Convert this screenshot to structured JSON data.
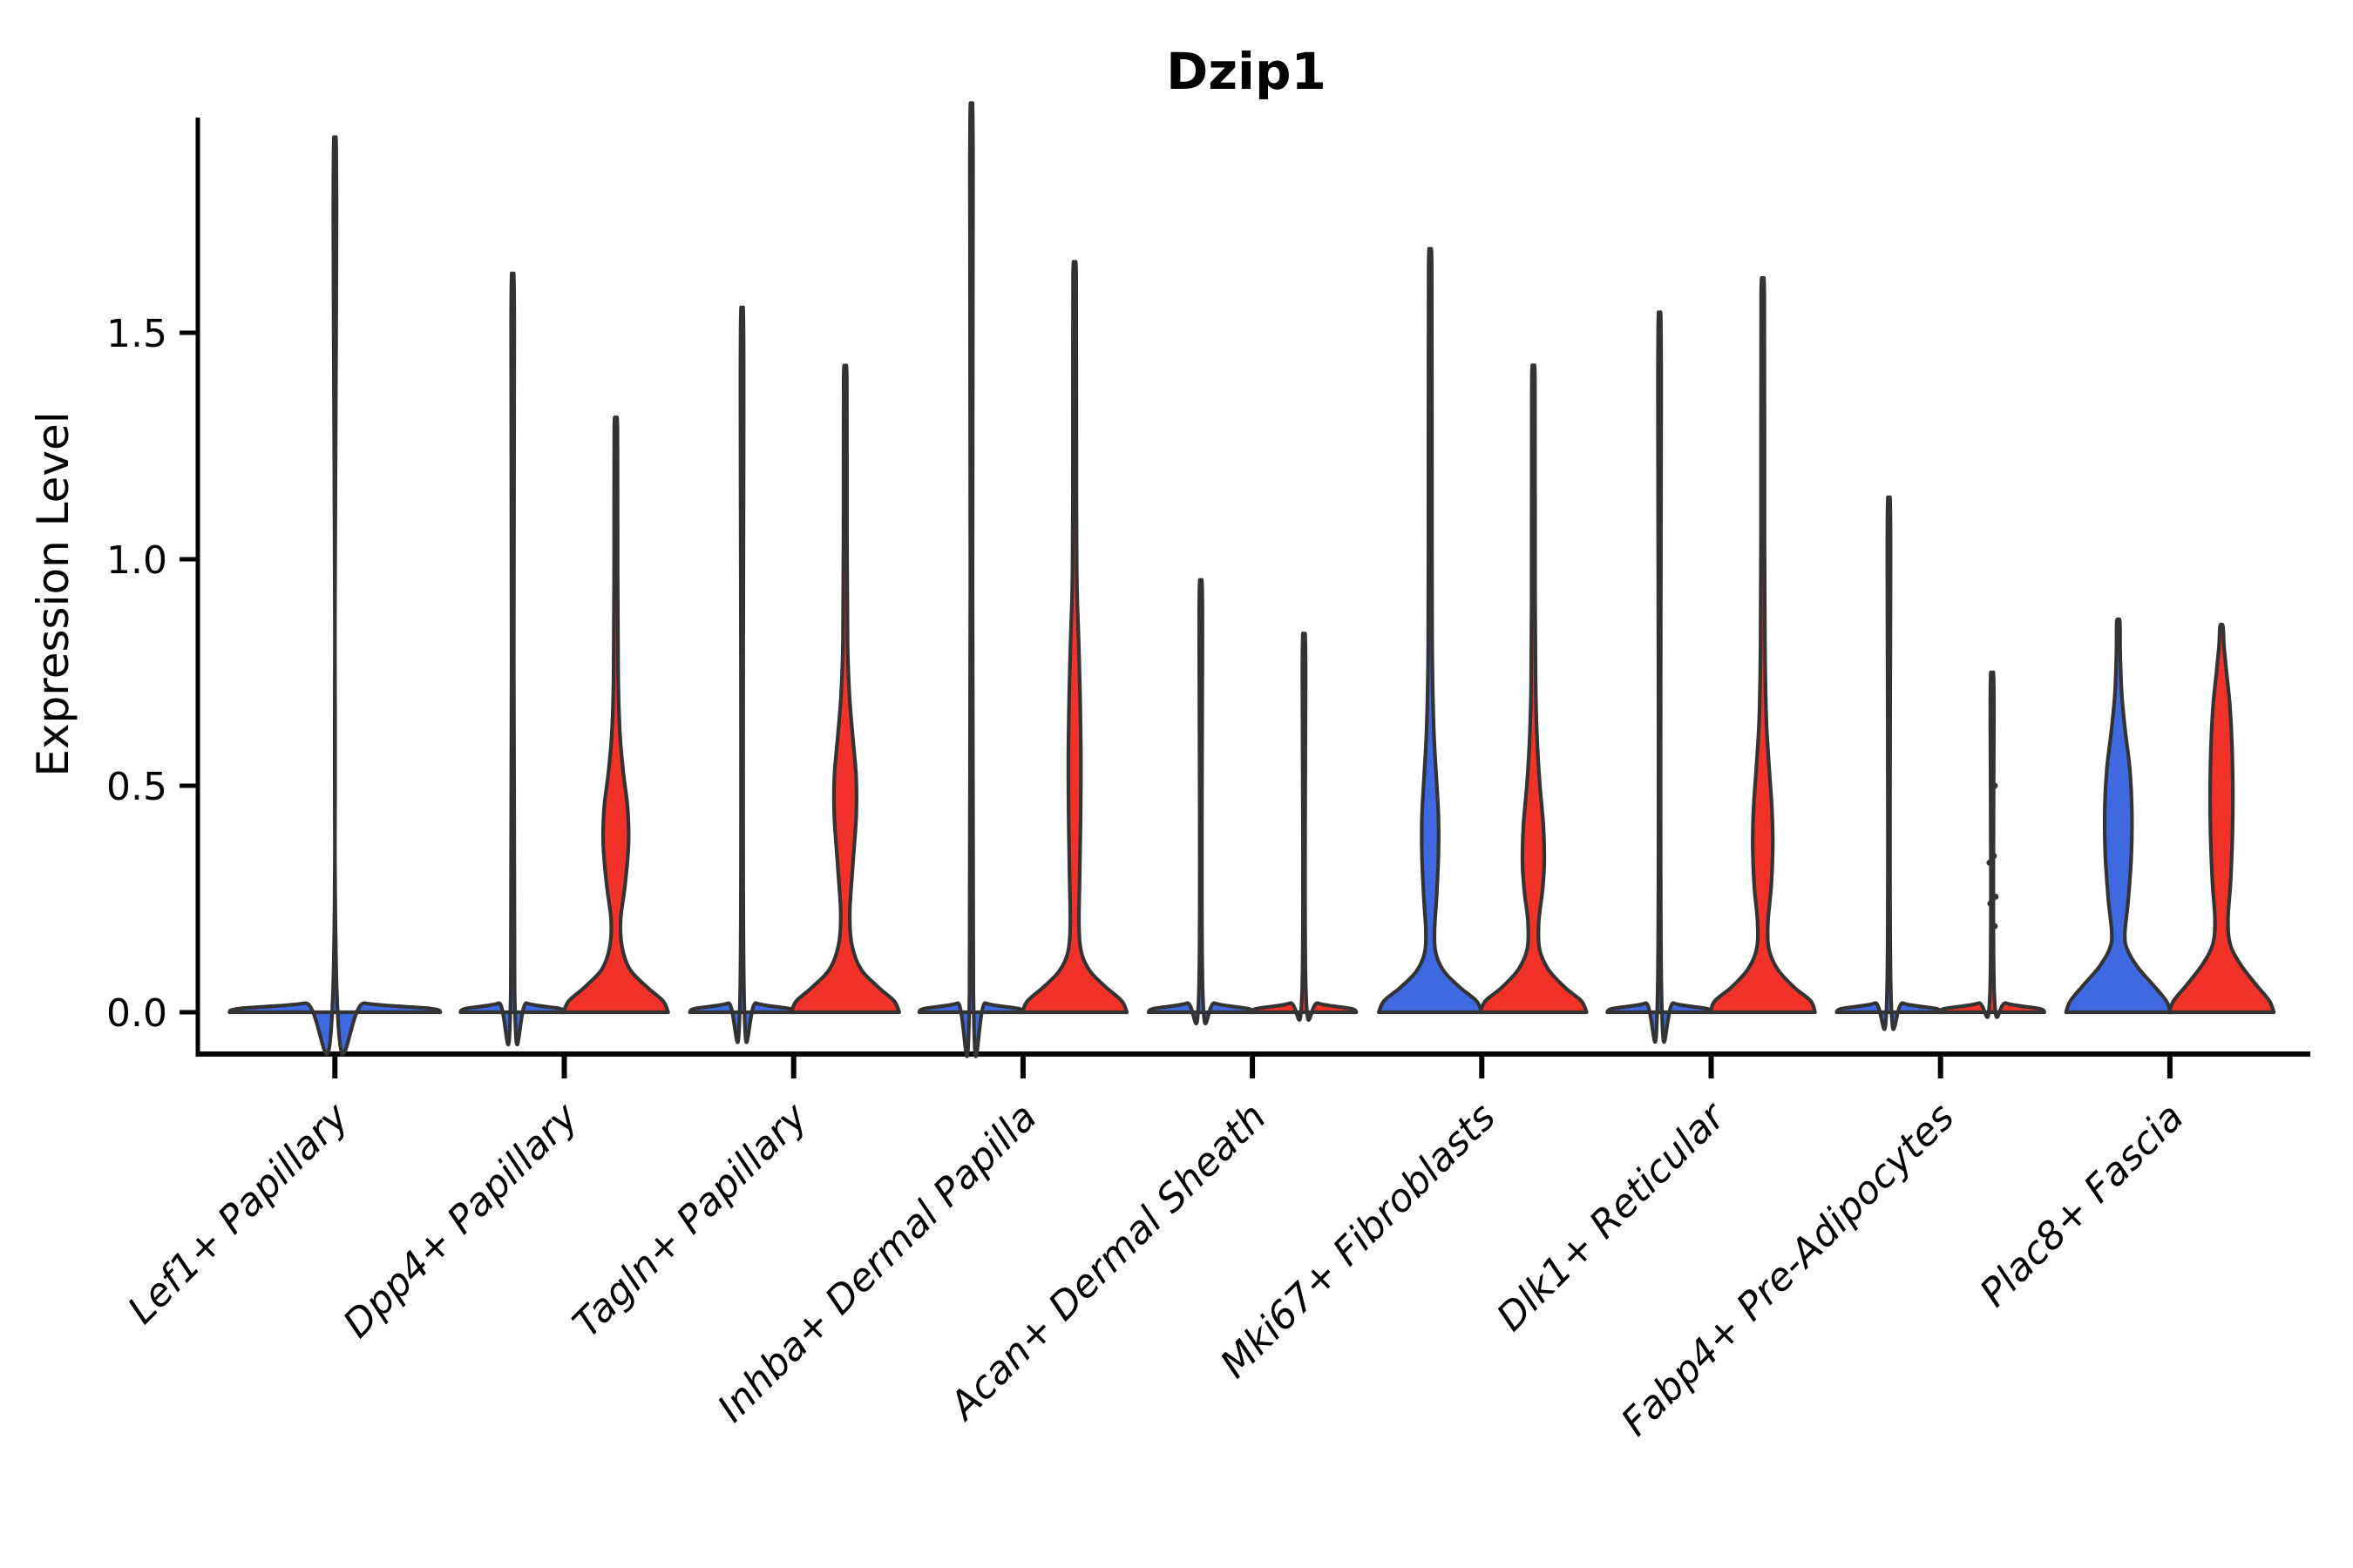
{
  "figure": {
    "background": "#ffffff"
  },
  "chart_data": {
    "type": "violin",
    "title": "Dzip1",
    "ylabel": "Expression Level",
    "xlabel": "",
    "ylim": [
      -0.09,
      1.98
    ],
    "grid": false,
    "legend_position": "none",
    "yticks": [
      {
        "label": "0.0",
        "value": 0.0
      },
      {
        "label": "0.5",
        "value": 0.5
      },
      {
        "label": "1.0",
        "value": 1.0
      },
      {
        "label": "1.5",
        "value": 1.5
      }
    ],
    "colors": {
      "split_left_fill": "#3F69E0",
      "split_right_fill": "#F23229",
      "violin_outline": "#333333",
      "axis": "#000000"
    },
    "categories": [
      {
        "label": "Lef1+ Papillary",
        "violins": [
          {
            "side": "center",
            "color": "left",
            "max_expression": 1.8,
            "profile": [
              [
                0,
                121
              ],
              [
                0.008,
                110
              ],
              [
                0.02,
                34
              ],
              [
                0.045,
                2.2
              ],
              [
                1.8,
                1.8
              ]
            ]
          }
        ]
      },
      {
        "label": "Dpp4+ Papillary",
        "violins": [
          {
            "side": "left",
            "color": "left",
            "max_expression": 1.52,
            "profile": [
              [
                0,
                60
              ],
              [
                0.008,
                54
              ],
              [
                0.02,
                16
              ],
              [
                0.045,
                2.2
              ],
              [
                1.52,
                1.8
              ]
            ]
          },
          {
            "side": "right",
            "color": "right",
            "max_expression": 1.29,
            "profile": [
              [
                0,
                60
              ],
              [
                0.025,
                54
              ],
              [
                0.055,
                36
              ],
              [
                0.095,
                16
              ],
              [
                0.145,
                7
              ],
              [
                0.205,
                5.5
              ],
              [
                0.28,
                10.5
              ],
              [
                0.37,
                14.5
              ],
              [
                0.45,
                13.5
              ],
              [
                0.53,
                8.5
              ],
              [
                0.62,
                4.5
              ],
              [
                0.75,
                2.6
              ],
              [
                1.0,
                2.0
              ],
              [
                1.29,
                1.8
              ]
            ]
          }
        ]
      },
      {
        "label": "Tagln+ Papillary",
        "violins": [
          {
            "side": "left",
            "color": "left",
            "max_expression": 1.45,
            "profile": [
              [
                0,
                60
              ],
              [
                0.008,
                54
              ],
              [
                0.02,
                16
              ],
              [
                0.045,
                2.2
              ],
              [
                1.45,
                1.8
              ]
            ]
          },
          {
            "side": "right",
            "color": "right",
            "max_expression": 1.4,
            "profile": [
              [
                0,
                62
              ],
              [
                0.025,
                56
              ],
              [
                0.055,
                38
              ],
              [
                0.095,
                18
              ],
              [
                0.15,
                7.5
              ],
              [
                0.22,
                5.2
              ],
              [
                0.32,
                8.5
              ],
              [
                0.43,
                12.5
              ],
              [
                0.52,
                12.5
              ],
              [
                0.61,
                8.5
              ],
              [
                0.7,
                4.8
              ],
              [
                0.82,
                2.6
              ],
              [
                1.05,
                2.0
              ],
              [
                1.4,
                1.8
              ]
            ]
          }
        ]
      },
      {
        "label": "Inhba+ Dermal Papilla",
        "violins": [
          {
            "side": "left",
            "color": "left",
            "max_expression": 1.87,
            "profile": [
              [
                0,
                60
              ],
              [
                0.008,
                54
              ],
              [
                0.02,
                16
              ],
              [
                0.045,
                2.2
              ],
              [
                1.87,
                1.8
              ]
            ]
          },
          {
            "side": "right",
            "color": "right",
            "max_expression": 1.62,
            "profile": [
              [
                0,
                60
              ],
              [
                0.025,
                54
              ],
              [
                0.055,
                36
              ],
              [
                0.09,
                18
              ],
              [
                0.13,
                8
              ],
              [
                0.19,
                5
              ],
              [
                0.3,
                5.8
              ],
              [
                0.42,
                6.8
              ],
              [
                0.56,
                7.2
              ],
              [
                0.7,
                6.2
              ],
              [
                0.82,
                4.6
              ],
              [
                0.95,
                2.6
              ],
              [
                1.15,
                2.0
              ],
              [
                1.62,
                1.8
              ]
            ]
          }
        ]
      },
      {
        "label": "Acan+ Dermal Sheath",
        "violins": [
          {
            "side": "left",
            "color": "left",
            "max_expression": 0.89,
            "profile": [
              [
                0,
                60
              ],
              [
                0.008,
                54
              ],
              [
                0.02,
                16
              ],
              [
                0.045,
                2.2
              ],
              [
                0.89,
                1.8
              ]
            ]
          },
          {
            "side": "right",
            "color": "right",
            "max_expression": 0.78,
            "profile": [
              [
                0,
                60
              ],
              [
                0.008,
                54
              ],
              [
                0.02,
                16
              ],
              [
                0.045,
                2.2
              ],
              [
                0.78,
                1.8
              ]
            ]
          }
        ]
      },
      {
        "label": "Mki67+ Fibroblasts",
        "violins": [
          {
            "side": "left",
            "color": "left",
            "max_expression": 1.64,
            "profile": [
              [
                0,
                59
              ],
              [
                0.025,
                53
              ],
              [
                0.055,
                34
              ],
              [
                0.09,
                16
              ],
              [
                0.13,
                6.5
              ],
              [
                0.18,
                5
              ],
              [
                0.26,
                7.5
              ],
              [
                0.35,
                9.5
              ],
              [
                0.43,
                9.5
              ],
              [
                0.52,
                7
              ],
              [
                0.62,
                4.2
              ],
              [
                0.78,
                2.4
              ],
              [
                1.05,
                2.0
              ],
              [
                1.64,
                1.8
              ]
            ]
          },
          {
            "side": "right",
            "color": "right",
            "max_expression": 1.39,
            "profile": [
              [
                0,
                61
              ],
              [
                0.025,
                55
              ],
              [
                0.055,
                36
              ],
              [
                0.095,
                17
              ],
              [
                0.14,
                7
              ],
              [
                0.2,
                6.2
              ],
              [
                0.27,
                10.5
              ],
              [
                0.33,
                12.5
              ],
              [
                0.41,
                11.5
              ],
              [
                0.5,
                7.5
              ],
              [
                0.59,
                4.6
              ],
              [
                0.7,
                2.8
              ],
              [
                0.9,
                2.0
              ],
              [
                1.39,
                1.8
              ]
            ]
          }
        ]
      },
      {
        "label": "Dlk1+ Reticular",
        "violins": [
          {
            "side": "left",
            "color": "left",
            "max_expression": 1.44,
            "profile": [
              [
                0,
                60
              ],
              [
                0.008,
                54
              ],
              [
                0.02,
                16
              ],
              [
                0.045,
                2.2
              ],
              [
                1.44,
                1.8
              ]
            ]
          },
          {
            "side": "right",
            "color": "right",
            "max_expression": 1.58,
            "profile": [
              [
                0,
                60
              ],
              [
                0.025,
                55
              ],
              [
                0.055,
                36
              ],
              [
                0.095,
                17
              ],
              [
                0.14,
                7
              ],
              [
                0.2,
                6
              ],
              [
                0.28,
                9.8
              ],
              [
                0.37,
                11.5
              ],
              [
                0.45,
                10.5
              ],
              [
                0.55,
                7
              ],
              [
                0.65,
                4
              ],
              [
                0.8,
                2.6
              ],
              [
                1.05,
                2.0
              ],
              [
                1.58,
                1.8
              ]
            ]
          }
        ]
      },
      {
        "label": "Fabp4+ Pre-Adipocytes",
        "violins": [
          {
            "side": "left",
            "color": "left",
            "max_expression": 1.06,
            "profile": [
              [
                0,
                60
              ],
              [
                0.008,
                54
              ],
              [
                0.02,
                16
              ],
              [
                0.045,
                2.2
              ],
              [
                1.06,
                1.8
              ]
            ]
          },
          {
            "side": "right",
            "color": "right",
            "max_expression": 0.7,
            "profile": [
              [
                0,
                60
              ],
              [
                0.008,
                54
              ],
              [
                0.02,
                16
              ],
              [
                0.045,
                2.4
              ],
              [
                0.7,
                2.0
              ]
            ],
            "dots": [
              0.16,
              0.19,
              0.24,
              0.255,
              0.33,
              0.345,
              0.405,
              0.5
            ]
          }
        ]
      },
      {
        "label": "Plac8+ Fascia",
        "violins": [
          {
            "side": "left",
            "color": "left",
            "max_expression": 0.86,
            "profile": [
              [
                0,
                60
              ],
              [
                0.025,
                55
              ],
              [
                0.06,
                40
              ],
              [
                0.1,
                22
              ],
              [
                0.14,
                10
              ],
              [
                0.175,
                7.5
              ],
              [
                0.25,
                11.5
              ],
              [
                0.35,
                15
              ],
              [
                0.45,
                15.5
              ],
              [
                0.54,
                13
              ],
              [
                0.62,
                8
              ],
              [
                0.7,
                4
              ],
              [
                0.79,
                2.2
              ],
              [
                0.86,
                1.8
              ]
            ]
          },
          {
            "side": "right",
            "color": "right",
            "max_expression": 0.85,
            "profile": [
              [
                0,
                60
              ],
              [
                0.025,
                55
              ],
              [
                0.06,
                40
              ],
              [
                0.105,
                22
              ],
              [
                0.15,
                10
              ],
              [
                0.205,
                7.5
              ],
              [
                0.29,
                10.5
              ],
              [
                0.39,
                12.5
              ],
              [
                0.49,
                13
              ],
              [
                0.59,
                12
              ],
              [
                0.68,
                9.5
              ],
              [
                0.755,
                5.5
              ],
              [
                0.81,
                2.8
              ],
              [
                0.85,
                1.8
              ]
            ]
          }
        ]
      }
    ]
  }
}
